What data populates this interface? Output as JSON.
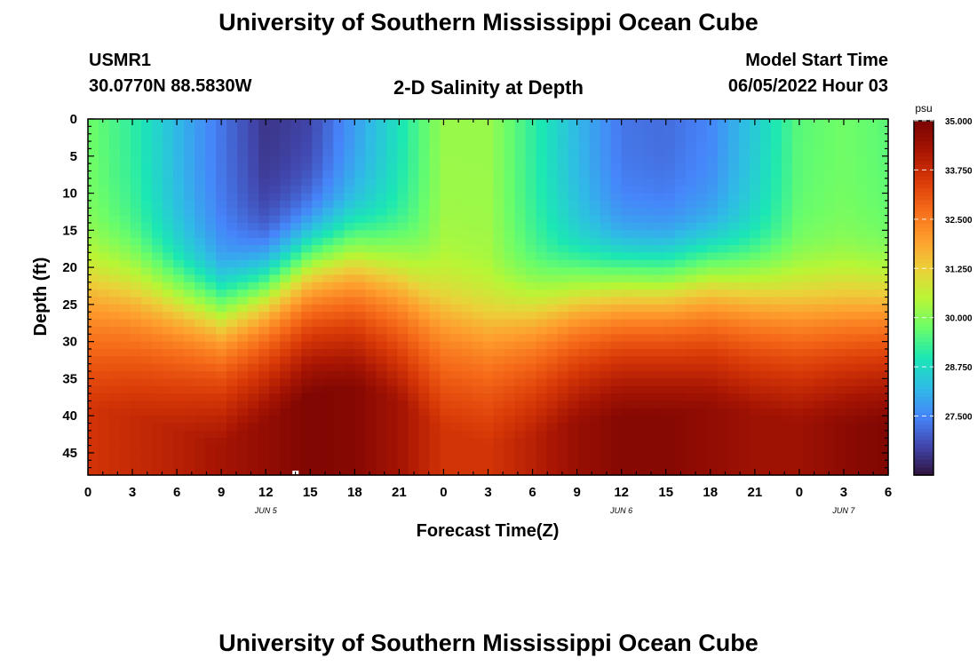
{
  "page": {
    "title_top": "University of Southern Mississippi Ocean Cube",
    "title_bottom": "University of Southern Mississippi Ocean Cube",
    "station": "USMR1",
    "coords": "30.0770N  88.5830W",
    "subtitle": "2-D Salinity at Depth",
    "model_start_label": "Model Start Time",
    "model_start_value": "06/05/2022 Hour 03"
  },
  "chart_data": {
    "type": "heatmap",
    "title": "2-D Salinity at Depth",
    "xlabel": "Forecast Time(Z)",
    "ylabel": "Depth (ft)",
    "x_tick_labels": [
      "0",
      "3",
      "6",
      "9",
      "12",
      "15",
      "18",
      "21",
      "0",
      "3",
      "6",
      "9",
      "12",
      "15",
      "18",
      "21",
      "0",
      "3",
      "6"
    ],
    "x_range_hours": [
      0,
      54
    ],
    "date_labels": [
      {
        "text": "JUN 5",
        "hour": 12
      },
      {
        "text": "JUN 6",
        "hour": 36
      },
      {
        "text": "JUN 7",
        "hour": 51
      }
    ],
    "y_tick_labels": [
      "0",
      "5",
      "10",
      "15",
      "20",
      "25",
      "30",
      "35",
      "40",
      "45"
    ],
    "ylim": [
      0,
      48
    ],
    "y_inverted": true,
    "colorbar": {
      "unit": "psu",
      "min": 26.0,
      "max": 35.0,
      "tick_labels": [
        "35.000",
        "33.750",
        "32.500",
        "31.250",
        "30.000",
        "28.750",
        "27.500"
      ],
      "tick_values": [
        35.0,
        33.75,
        32.5,
        31.25,
        30.0,
        28.75,
        27.5
      ]
    },
    "colormap": [
      "#30123b",
      "#4146ac",
      "#4685fa",
      "#2fbce5",
      "#1be7b4",
      "#6afd6a",
      "#b8f635",
      "#ecd03a",
      "#fe9e2e",
      "#f66b19",
      "#d93907",
      "#a71503",
      "#7a0403"
    ],
    "surface_profile": {
      "hours": [
        0,
        3,
        6,
        9,
        12,
        15,
        18,
        21,
        24,
        27,
        30,
        33,
        36,
        39,
        42,
        45,
        48,
        51,
        54
      ],
      "psu": [
        29.8,
        29.2,
        28.2,
        27.3,
        26.5,
        26.7,
        27.8,
        28.9,
        30.2,
        30.2,
        29.2,
        28.2,
        27.3,
        27.2,
        27.5,
        28.5,
        29.6,
        29.8,
        29.6
      ]
    },
    "halocline_depth_ft": {
      "hours": [
        0,
        3,
        6,
        9,
        12,
        15,
        18,
        21,
        24,
        27,
        30,
        33,
        36,
        39,
        42,
        45,
        48,
        51,
        54
      ],
      "depth": [
        19,
        20,
        22,
        24,
        21,
        17,
        16,
        18,
        22,
        24,
        23,
        21,
        20,
        20,
        19,
        20,
        21,
        21,
        21
      ]
    },
    "bottom_profile": {
      "hours": [
        0,
        3,
        6,
        9,
        12,
        15,
        18,
        21,
        24,
        27,
        30,
        33,
        36,
        39,
        42,
        45,
        48,
        51,
        54
      ],
      "psu": [
        33.6,
        33.8,
        34.0,
        34.3,
        34.6,
        34.9,
        34.8,
        34.3,
        33.6,
        33.6,
        34.0,
        34.5,
        34.8,
        34.8,
        34.6,
        34.4,
        34.4,
        34.7,
        34.9
      ]
    }
  }
}
